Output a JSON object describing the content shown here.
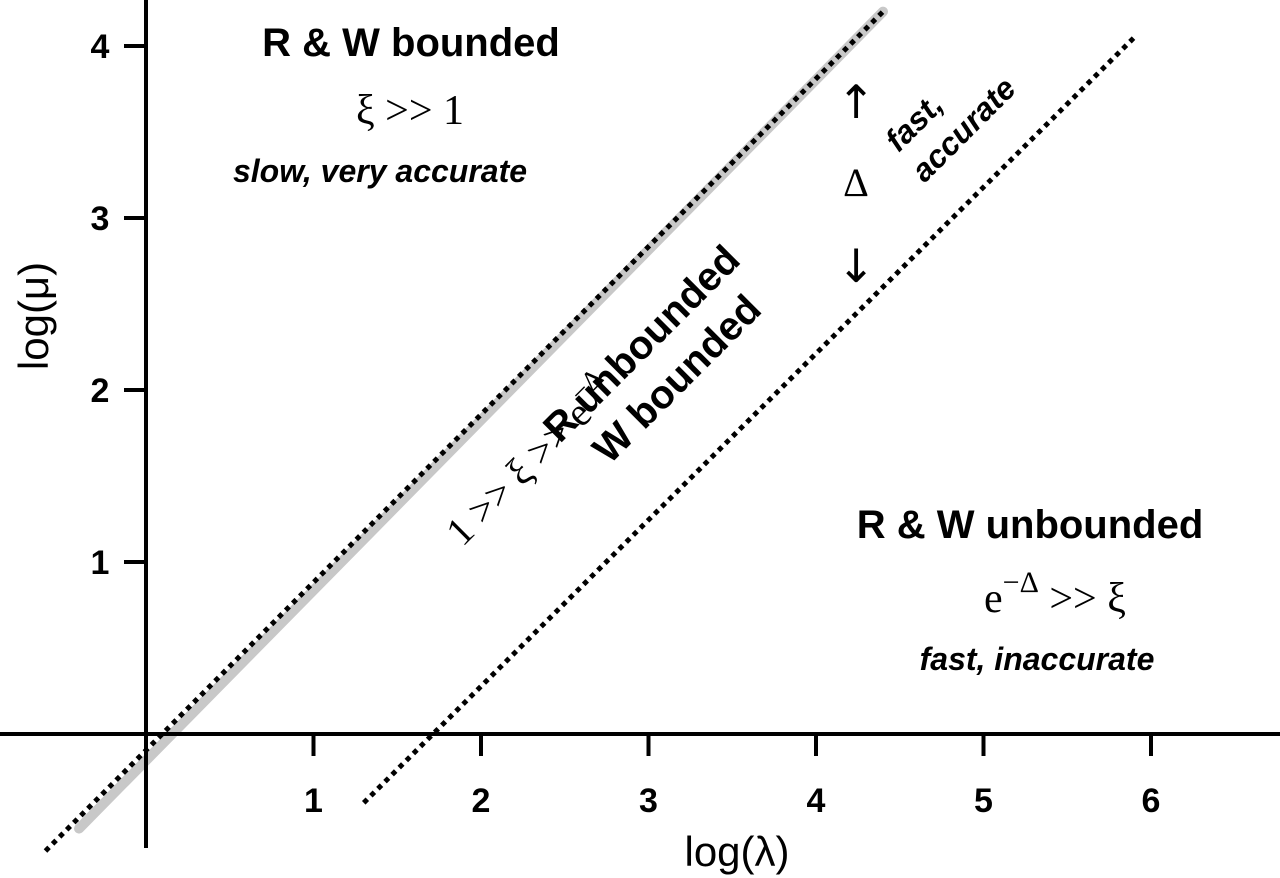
{
  "chart_data": {
    "type": "line",
    "xlabel": "log(λ)",
    "ylabel": "log(μ)",
    "xlim": [
      -0.6,
      6.8
    ],
    "ylim": [
      -0.7,
      4.3
    ],
    "x_ticks": [
      "1",
      "2",
      "3",
      "4",
      "5",
      "6"
    ],
    "y_ticks": [
      "1",
      "2",
      "3",
      "4"
    ],
    "grid": false,
    "series": [
      {
        "style": "solid-gray",
        "color": "#c8c8c8",
        "points": [
          [
            -0.4,
            -0.55
          ],
          [
            4.4,
            4.2
          ]
        ]
      },
      {
        "style": "dotted",
        "color": "#000000",
        "points": [
          [
            -0.6,
            -0.68
          ],
          [
            4.4,
            4.2
          ]
        ]
      },
      {
        "style": "dotted",
        "color": "#000000",
        "points": [
          [
            1.3,
            -0.4
          ],
          [
            5.9,
            4.05
          ]
        ]
      }
    ],
    "annotations": {
      "upper_left": {
        "title": "R & W bounded",
        "formula": "ξ >> 1",
        "note": "slow, very accurate"
      },
      "band": {
        "formula": "1 >> ξ >> e",
        "formula_sup": "−Δ",
        "title_line1": "R unbounded",
        "title_line2": "W bounded"
      },
      "arrow": {
        "up": "↑",
        "down": "↓",
        "delta": "Δ",
        "note_line1": "fast,",
        "note_line2": "accurate"
      },
      "lower_right": {
        "title": "R & W unbounded",
        "formula_base": "e",
        "formula_sup": "−Δ",
        "formula_rest": " >> ξ",
        "note": "fast, inaccurate"
      }
    }
  }
}
